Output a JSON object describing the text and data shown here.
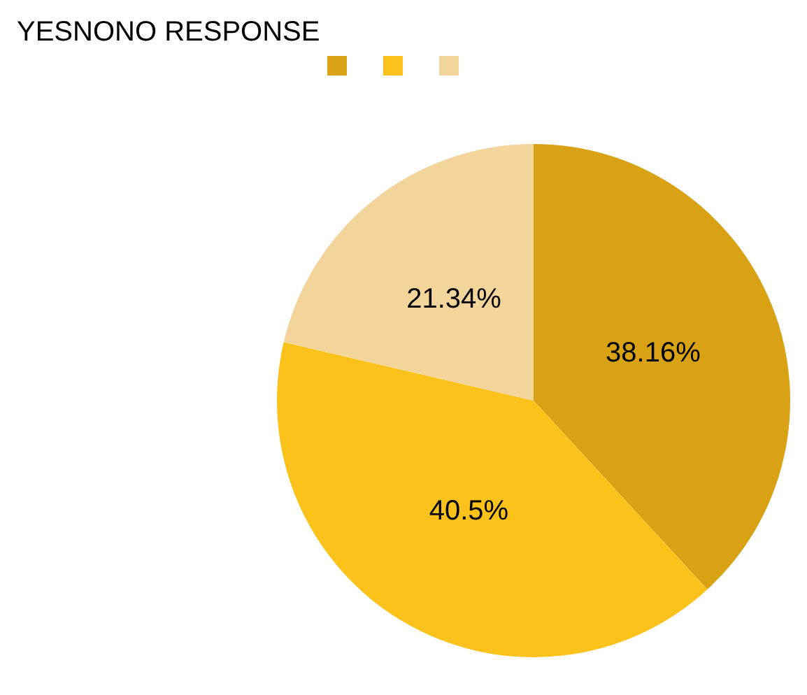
{
  "chart_data": {
    "type": "pie",
    "title": "YESNONO RESPONSE",
    "categories": [
      null,
      null,
      null
    ],
    "values": [
      38.16,
      40.5,
      21.34
    ],
    "colors": [
      "#d9a215",
      "#fcc21c",
      "#f3d49a"
    ],
    "value_labels": [
      "38.16%",
      "40.5%",
      "21.34%"
    ]
  }
}
